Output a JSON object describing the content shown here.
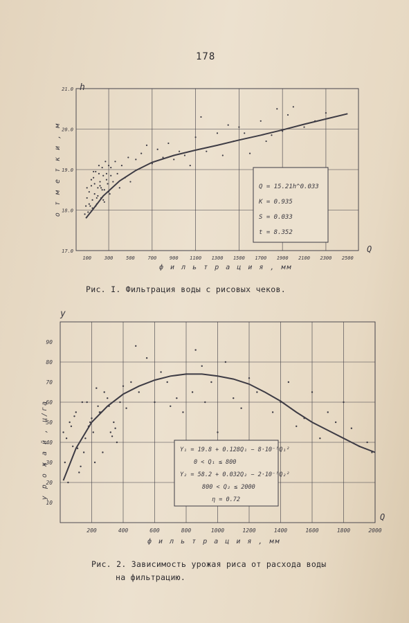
{
  "page_number": "178",
  "captions": {
    "fig1": "Рис. I. Фильтрация воды с рисовых чеков.",
    "fig2_line1": "Рис. 2. Зависимость урожая риса от расхода воды",
    "fig2_line2": "на фильтрацию."
  },
  "chart_data": [
    {
      "type": "scatter",
      "title": "",
      "y_axis_letter": "h",
      "x_axis_letter": "Q",
      "ylabel": "о т м е т к и ,  м",
      "xlabel": "ф и л ь т р а ц и я ,  мм",
      "x_ticks": [
        "100",
        "300",
        "500",
        "700",
        "900",
        "1100",
        "1300",
        "1500",
        "1700",
        "1900",
        "2100",
        "2300",
        "2500"
      ],
      "y_ticks": [
        "17.0",
        "18.0",
        "19.0",
        "20.0",
        "21.0"
      ],
      "xlim": [
        0,
        2600
      ],
      "ylim": [
        17.0,
        21.0
      ],
      "grid": true,
      "annotation_lines": [
        "Q = 15.21h^0.033",
        "K = 0.935",
        "S = 0.033",
        "t = 8.352"
      ],
      "fit_curve": {
        "x": [
          90,
          150,
          250,
          400,
          550,
          700,
          900,
          1100,
          1300,
          1500,
          1700,
          1900,
          2100,
          2300,
          2500
        ],
        "y": [
          17.8,
          18.0,
          18.35,
          18.72,
          18.98,
          19.18,
          19.35,
          19.48,
          19.6,
          19.73,
          19.85,
          19.98,
          20.12,
          20.25,
          20.38
        ]
      },
      "points": {
        "x": [
          80,
          90,
          100,
          110,
          120,
          130,
          140,
          150,
          160,
          170,
          180,
          190,
          200,
          210,
          220,
          230,
          240,
          250,
          260,
          270,
          280,
          290,
          300,
          310,
          320,
          340,
          360,
          380,
          400,
          420,
          450,
          480,
          500,
          550,
          600,
          650,
          700,
          750,
          800,
          850,
          900,
          950,
          1000,
          1050,
          1100,
          1150,
          1200,
          1300,
          1350,
          1400,
          1450,
          1500,
          1550,
          1600,
          1700,
          1750,
          1800,
          1850,
          1900,
          1950,
          2000,
          2100,
          2200,
          2300,
          100,
          120,
          140,
          160,
          180,
          200,
          220,
          240,
          260,
          280,
          300,
          320,
          150,
          170,
          190,
          210,
          230,
          250
        ],
        "y": [
          17.9,
          18.1,
          18.3,
          17.95,
          18.45,
          18.1,
          18.6,
          18.25,
          18.8,
          18.4,
          18.95,
          18.15,
          18.55,
          19.1,
          18.7,
          18.3,
          19.05,
          18.85,
          18.5,
          19.2,
          18.9,
          18.65,
          19.1,
          18.4,
          19.05,
          18.7,
          19.2,
          18.9,
          18.55,
          19.1,
          18.8,
          19.3,
          18.7,
          19.25,
          19.4,
          19.6,
          19.15,
          19.5,
          19.3,
          19.65,
          19.25,
          19.45,
          19.35,
          19.1,
          19.8,
          20.3,
          19.45,
          19.9,
          19.35,
          20.1,
          19.7,
          20.05,
          19.9,
          19.4,
          20.2,
          19.7,
          19.85,
          20.5,
          19.95,
          20.35,
          20.55,
          20.05,
          20.2,
          20.4,
          18.55,
          18.15,
          18.75,
          18.95,
          18.1,
          18.35,
          18.6,
          18.5,
          18.2,
          18.75,
          18.45,
          18.85,
          18.05,
          18.65,
          18.3,
          18.9,
          18.55,
          18.25
        ]
      }
    },
    {
      "type": "scatter",
      "title": "",
      "y_axis_letter": "y",
      "x_axis_letter": "Q",
      "ylabel": "у р о ж а й ,  ц/га",
      "xlabel": "ф и л ь т р а ц и я ,  мм",
      "x_ticks": [
        "200",
        "400",
        "600",
        "800",
        "1000",
        "1200",
        "1400",
        "1600",
        "1800",
        "2000"
      ],
      "y_ticks": [
        "10",
        "20",
        "30",
        "40",
        "50",
        "60",
        "70",
        "80",
        "90"
      ],
      "xlim": [
        0,
        2000
      ],
      "ylim": [
        0,
        100
      ],
      "grid": true,
      "annotation_lines": [
        "Y₁ = 19.8 + 0.128Q₁ − 8·10⁻⁵Q₁²",
        "0 < Q₁ ≤ 800",
        "Y₂ = 58.2 + 0.032Q₂ − 2·10⁻⁵Q₂²",
        "800 < Q₂ ≤ 2000",
        "η = 0.72"
      ],
      "fit_curve": {
        "x": [
          20,
          100,
          200,
          300,
          400,
          500,
          600,
          700,
          800,
          900,
          1000,
          1100,
          1200,
          1300,
          1400,
          1500,
          1600,
          1700,
          1800,
          1900,
          2000
        ],
        "y": [
          21,
          37,
          50,
          58,
          64,
          68,
          71,
          73,
          74,
          74,
          73,
          71.5,
          69,
          65,
          60.5,
          55,
          50,
          46,
          42,
          38,
          35
        ]
      },
      "points": {
        "x": [
          20,
          40,
          60,
          80,
          100,
          120,
          140,
          150,
          160,
          180,
          200,
          220,
          240,
          260,
          280,
          300,
          320,
          340,
          360,
          380,
          400,
          420,
          450,
          480,
          500,
          550,
          600,
          640,
          680,
          700,
          740,
          780,
          800,
          840,
          860,
          900,
          920,
          960,
          1000,
          1050,
          1100,
          1150,
          1200,
          1250,
          1300,
          1350,
          1400,
          1450,
          1500,
          1550,
          1600,
          1650,
          1700,
          1750,
          1800,
          1850,
          1900,
          1950,
          1980,
          30,
          50,
          70,
          90,
          110,
          130,
          170,
          190,
          210,
          230,
          250,
          270,
          310,
          330,
          350
        ],
        "y": [
          45,
          42,
          50,
          38,
          55,
          25,
          60,
          35,
          42,
          48,
          52,
          30,
          58,
          55,
          65,
          62,
          45,
          50,
          40,
          60,
          68,
          57,
          70,
          88,
          65,
          82,
          60,
          75,
          70,
          58,
          62,
          55,
          74,
          65,
          86,
          78,
          60,
          70,
          45,
          80,
          62,
          57,
          72,
          65,
          40,
          55,
          60,
          70,
          48,
          52,
          65,
          42,
          55,
          50,
          60,
          47,
          38,
          40,
          35,
          30,
          20,
          48,
          53,
          37,
          28,
          60,
          50,
          45,
          67,
          55,
          35,
          58,
          43,
          47
        ]
      }
    }
  ]
}
